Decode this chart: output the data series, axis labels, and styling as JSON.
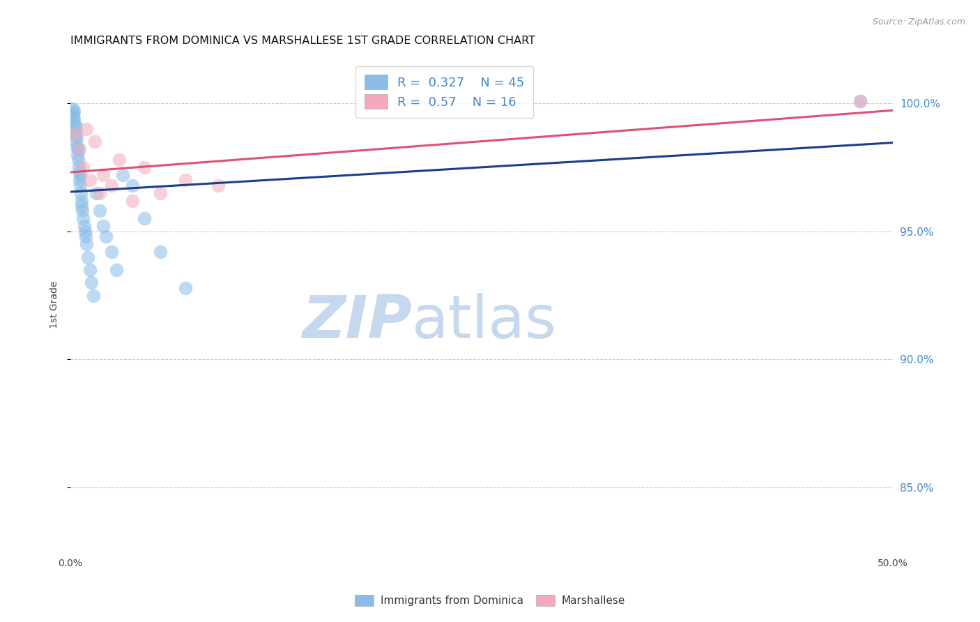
{
  "title": "IMMIGRANTS FROM DOMINICA VS MARSHALLESE 1ST GRADE CORRELATION CHART",
  "source": "Source: ZipAtlas.com",
  "ylabel": "1st Grade",
  "y_ticks": [
    85.0,
    90.0,
    95.0,
    100.0
  ],
  "y_tick_labels": [
    "85.0%",
    "90.0%",
    "95.0%",
    "100.0%"
  ],
  "x_min": 0.0,
  "x_max": 50.0,
  "y_min": 82.5,
  "y_max": 101.8,
  "blue_R": 0.327,
  "blue_N": 45,
  "pink_R": 0.57,
  "pink_N": 16,
  "blue_color": "#89BCE8",
  "blue_line_color": "#1A3E8F",
  "pink_color": "#F2AABB",
  "pink_line_color": "#E05070",
  "legend_label_blue": "Immigrants from Dominica",
  "legend_label_pink": "Marshallese",
  "blue_x": [
    0.15,
    0.18,
    0.2,
    0.22,
    0.25,
    0.28,
    0.3,
    0.32,
    0.35,
    0.38,
    0.4,
    0.42,
    0.45,
    0.48,
    0.5,
    0.52,
    0.55,
    0.58,
    0.6,
    0.62,
    0.65,
    0.68,
    0.7,
    0.75,
    0.8,
    0.85,
    0.9,
    0.95,
    1.0,
    1.1,
    1.2,
    1.3,
    1.4,
    1.6,
    1.8,
    2.0,
    2.2,
    2.5,
    2.8,
    3.2,
    3.8,
    4.5,
    5.5,
    7.0,
    48.0
  ],
  "blue_y": [
    99.8,
    99.5,
    99.6,
    99.7,
    99.4,
    99.2,
    99.0,
    98.8,
    99.1,
    98.5,
    98.7,
    98.3,
    98.0,
    97.8,
    98.2,
    97.5,
    97.3,
    97.0,
    96.8,
    97.2,
    96.5,
    96.2,
    96.0,
    95.8,
    95.5,
    95.2,
    95.0,
    94.8,
    94.5,
    94.0,
    93.5,
    93.0,
    92.5,
    96.5,
    95.8,
    95.2,
    94.8,
    94.2,
    93.5,
    97.2,
    96.8,
    95.5,
    94.2,
    92.8,
    100.1
  ],
  "pink_x": [
    0.3,
    0.55,
    0.8,
    1.0,
    1.2,
    1.5,
    1.8,
    2.0,
    2.5,
    3.0,
    3.8,
    4.5,
    5.5,
    7.0,
    9.0,
    48.0
  ],
  "pink_y": [
    98.8,
    98.2,
    97.5,
    99.0,
    97.0,
    98.5,
    96.5,
    97.2,
    96.8,
    97.8,
    96.2,
    97.5,
    96.5,
    97.0,
    96.8,
    100.1
  ],
  "watermark_zip": "ZIP",
  "watermark_atlas": "atlas",
  "watermark_color_zip": "#C5D8EE",
  "watermark_color_atlas": "#C5D8EE",
  "background_color": "#FFFFFF",
  "grid_color": "#CCCCCC"
}
